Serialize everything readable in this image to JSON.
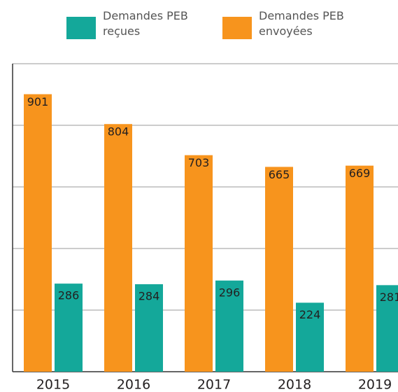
{
  "chart_data": {
    "type": "bar",
    "categories": [
      "2015",
      "2016",
      "2017",
      "2018",
      "2019"
    ],
    "series": [
      {
        "name": "Demandes PEB reçues",
        "color": "#14a89a",
        "values": [
          286,
          284,
          296,
          224,
          281
        ]
      },
      {
        "name": "Demandes PEB envoyées",
        "color": "#f7941d",
        "values": [
          901,
          804,
          703,
          665,
          669
        ]
      }
    ],
    "ylim": [
      0,
      1000
    ],
    "yticks": [
      0,
      200,
      400,
      600,
      800,
      1000
    ],
    "grid": true,
    "legend": "top"
  }
}
